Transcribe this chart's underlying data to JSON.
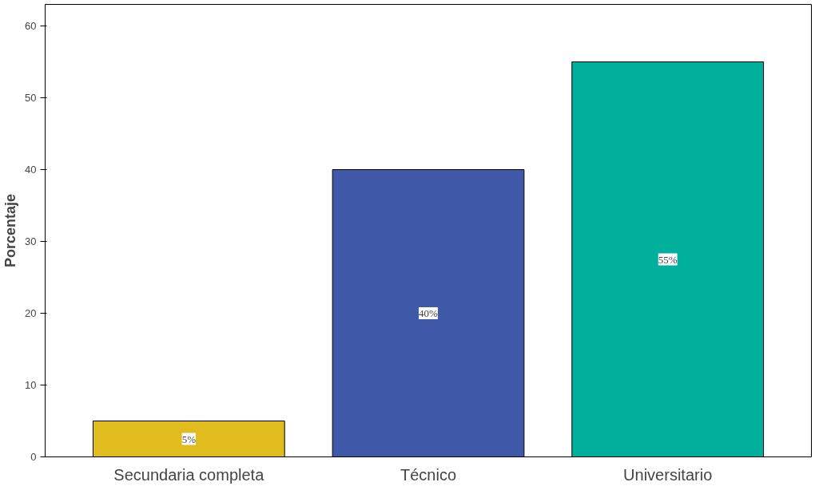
{
  "chart_data": {
    "type": "bar",
    "ylabel": "Porcentaje",
    "categories": [
      "Secundaria completa",
      "Técnico",
      "Universitario"
    ],
    "values": [
      5,
      40,
      55
    ],
    "colors": [
      "#e0bc1e",
      "#3f58a8",
      "#00b09c"
    ],
    "value_labels": [
      "5%",
      "40%",
      "55%"
    ],
    "ylim": [
      0,
      63
    ],
    "yticks": [
      0,
      10,
      20,
      30,
      40,
      50,
      60
    ],
    "grid": false
  }
}
